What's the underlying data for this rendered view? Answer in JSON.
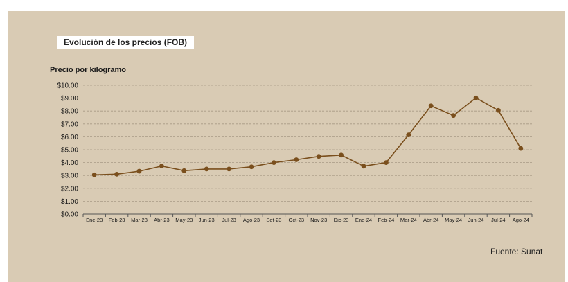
{
  "chart_data": {
    "type": "line",
    "title": "Evolución de los precios (FOB)",
    "ylabel": "Precio por kilogramo",
    "source": "Fuente: Sunat",
    "categories": [
      "Ene-23",
      "Feb-23",
      "Mar-23",
      "Abr-23",
      "May-23",
      "Jun-23",
      "Jul-23",
      "Ago-23",
      "Set-23",
      "Oct-23",
      "Nov-23",
      "Dic-23",
      "Ene-24",
      "Feb-24",
      "Mar-24",
      "Abr-24",
      "May-24",
      "Jun-24",
      "Jul-24",
      "Ago-24"
    ],
    "values": [
      3.05,
      3.1,
      3.33,
      3.73,
      3.37,
      3.5,
      3.5,
      3.67,
      4.0,
      4.22,
      4.48,
      4.58,
      3.72,
      4.0,
      6.15,
      8.4,
      7.65,
      9.02,
      8.05,
      5.1
    ],
    "yticks": [
      "$0.00",
      "$1.00",
      "$2.00",
      "$3.00",
      "$4.00",
      "$5.00",
      "$6.00",
      "$7.00",
      "$8.00",
      "$9.00",
      "$10.00"
    ],
    "ylim": [
      0,
      10
    ],
    "grid": true,
    "colors": {
      "line": "#7a4f1d",
      "grid": "#a89a85",
      "background": "#d9cbb4"
    }
  }
}
